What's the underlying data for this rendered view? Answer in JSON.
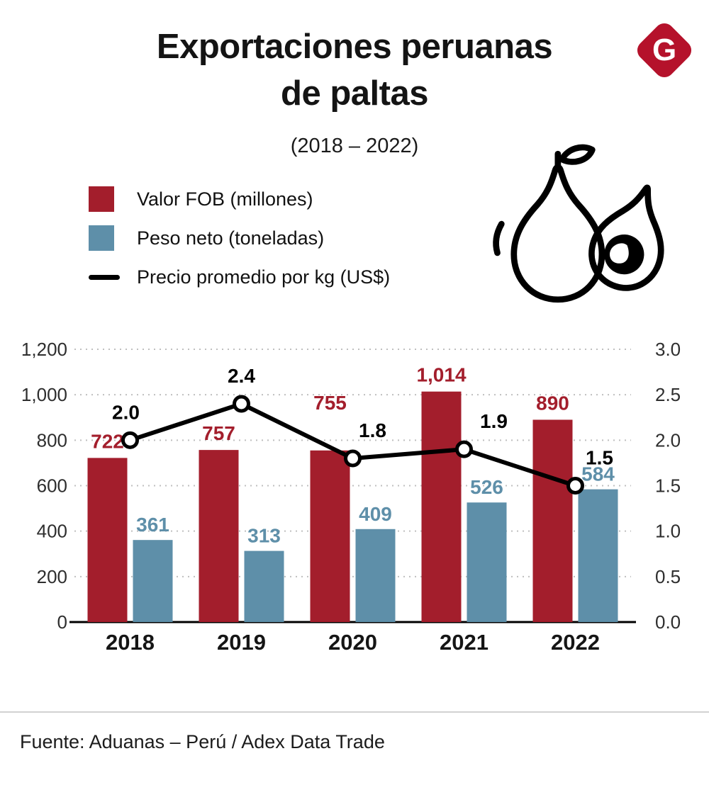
{
  "header": {
    "title": "Exportaciones peruanas\nde paltas",
    "subtitle": "(2018 – 2022)",
    "logo_letter": "G",
    "logo_color": "#B5122B"
  },
  "legend": {
    "items": [
      {
        "label": "Valor FOB (millones)",
        "color": "#A31E2C",
        "type": "square"
      },
      {
        "label": "Peso neto (toneladas)",
        "color": "#5E8FA9",
        "type": "square"
      },
      {
        "label": "Precio promedio por kg (US$)",
        "color": "#000000",
        "type": "line"
      }
    ]
  },
  "chart_data": {
    "type": "bar+line",
    "title": "Exportaciones peruanas de paltas (2018 – 2022)",
    "categories": [
      "2018",
      "2019",
      "2020",
      "2021",
      "2022"
    ],
    "series": [
      {
        "name": "Valor FOB (millones)",
        "type": "bar",
        "axis": "left",
        "color": "#A31E2C",
        "values": [
          722,
          757,
          755,
          1014,
          890
        ],
        "labels": [
          "722",
          "757",
          "755",
          "1,014",
          "890"
        ]
      },
      {
        "name": "Peso neto (toneladas)",
        "type": "bar",
        "axis": "left",
        "color": "#5E8FA9",
        "values": [
          361,
          313,
          409,
          526,
          584
        ],
        "labels": [
          "361",
          "313",
          "409",
          "526",
          "584"
        ]
      },
      {
        "name": "Precio promedio por kg (US$)",
        "type": "line",
        "axis": "right",
        "color": "#000000",
        "values": [
          2.0,
          2.4,
          1.8,
          1.9,
          1.5
        ],
        "labels": [
          "2.0",
          "2.4",
          "1.8",
          "1.9",
          "1.5"
        ]
      }
    ],
    "left_axis": {
      "min": 0,
      "max": 1200,
      "ticks": [
        "0",
        "200",
        "400",
        "600",
        "800",
        "1,000",
        "1,200"
      ]
    },
    "right_axis": {
      "min": 0.0,
      "max": 3.0,
      "ticks": [
        "0.0",
        "0.5",
        "1.0",
        "1.5",
        "2.0",
        "2.5",
        "3.0"
      ]
    },
    "grid": "dotted horizontal",
    "legend_position": "top-left"
  },
  "footer": {
    "source": "Fuente: Aduanas – Perú / Adex Data Trade"
  }
}
